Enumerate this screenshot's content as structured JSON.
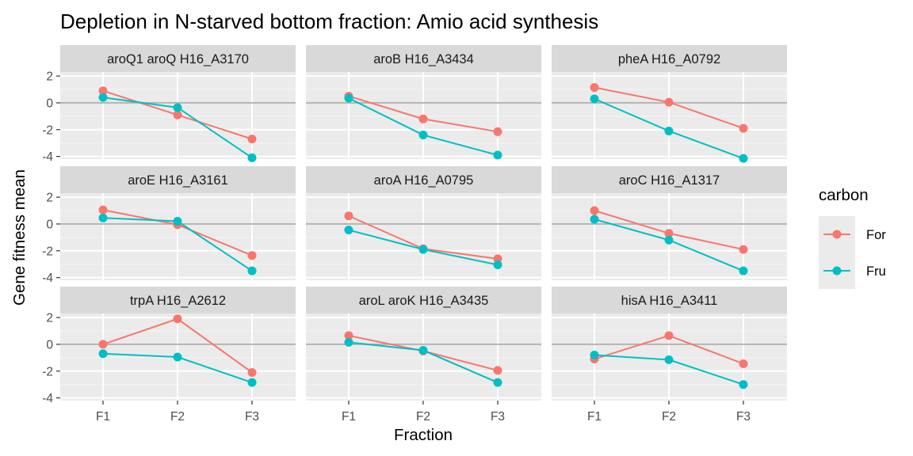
{
  "chart_data": {
    "type": "line",
    "title": "Depletion in N-starved bottom fraction: Amio acid synthesis",
    "xlabel": "Fraction",
    "ylabel": "Gene fitness mean",
    "categories": [
      "F1",
      "F2",
      "F3"
    ],
    "yticks": [
      2,
      0,
      -2,
      -4
    ],
    "ylim": [
      -4.2,
      2.3
    ],
    "legend": {
      "title": "carbon",
      "position": "right",
      "entries": [
        {
          "name": "For",
          "color": "#F8766D"
        },
        {
          "name": "Fru",
          "color": "#00BFC4"
        }
      ]
    },
    "panels": [
      {
        "label": "aroQ1 aroQ H16_A3170",
        "series": [
          {
            "name": "For",
            "values": [
              0.9,
              -0.9,
              -2.7
            ]
          },
          {
            "name": "Fru",
            "values": [
              0.4,
              -0.35,
              -4.1
            ]
          }
        ]
      },
      {
        "label": "aroB H16_A3434",
        "series": [
          {
            "name": "For",
            "values": [
              0.5,
              -1.2,
              -2.15
            ]
          },
          {
            "name": "Fru",
            "values": [
              0.35,
              -2.4,
              -3.9
            ]
          }
        ]
      },
      {
        "label": "pheA H16_A0792",
        "series": [
          {
            "name": "For",
            "values": [
              1.15,
              0.05,
              -1.9
            ]
          },
          {
            "name": "Fru",
            "values": [
              0.3,
              -2.1,
              -4.15
            ]
          }
        ]
      },
      {
        "label": "aroE H16_A3161",
        "series": [
          {
            "name": "For",
            "values": [
              1.05,
              -0.05,
              -2.35
            ]
          },
          {
            "name": "Fru",
            "values": [
              0.45,
              0.2,
              -3.5
            ]
          }
        ]
      },
      {
        "label": "aroA H16_A0795",
        "series": [
          {
            "name": "For",
            "values": [
              0.6,
              -1.85,
              -2.6
            ]
          },
          {
            "name": "Fru",
            "values": [
              -0.45,
              -1.9,
              -3.05
            ]
          }
        ]
      },
      {
        "label": "aroC H16_A1317",
        "series": [
          {
            "name": "For",
            "values": [
              1.0,
              -0.7,
              -1.9
            ]
          },
          {
            "name": "Fru",
            "values": [
              0.35,
              -1.2,
              -3.5
            ]
          }
        ]
      },
      {
        "label": "trpA H16_A2612",
        "series": [
          {
            "name": "For",
            "values": [
              0.0,
              1.9,
              -2.1
            ]
          },
          {
            "name": "Fru",
            "values": [
              -0.7,
              -0.95,
              -2.85
            ]
          }
        ]
      },
      {
        "label": "aroL aroK H16_A3435",
        "series": [
          {
            "name": "For",
            "values": [
              0.65,
              -0.5,
              -1.95
            ]
          },
          {
            "name": "Fru",
            "values": [
              0.15,
              -0.45,
              -2.85
            ]
          }
        ]
      },
      {
        "label": "hisA H16_A3411",
        "series": [
          {
            "name": "For",
            "values": [
              -1.1,
              0.65,
              -1.45
            ]
          },
          {
            "name": "Fru",
            "values": [
              -0.8,
              -1.15,
              -3.0
            ]
          }
        ]
      }
    ],
    "grid": true
  }
}
